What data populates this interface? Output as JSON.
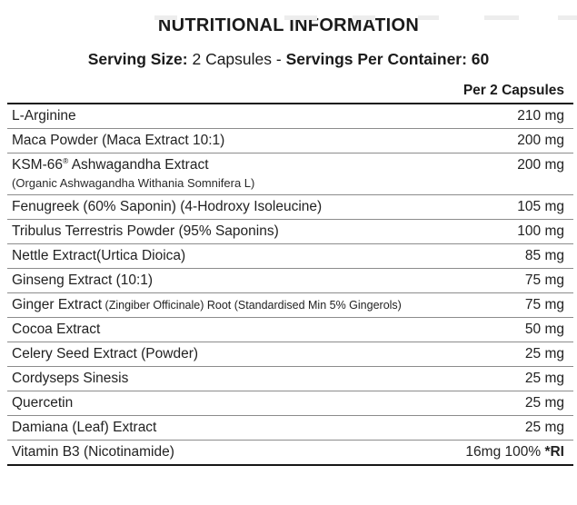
{
  "title": "NUTRITIONAL INFORMATION",
  "serving": {
    "size_label": "Serving Size: ",
    "size_value": "2 Capsules - ",
    "container_label": "Servings Per Container: 60"
  },
  "table": {
    "column_header": "Per 2 Capsules",
    "rows": [
      {
        "main": "L-Arginine",
        "amount": "210 mg"
      },
      {
        "main": "Maca Powder (Maca Extract 10:1)",
        "amount": "200 mg"
      },
      {
        "main": "KSM-66",
        "sup": "®",
        "rest": " Ashwagandha Extract",
        "subline": "(Organic Ashwagandha Withania Somnifera L)",
        "amount": "200 mg"
      },
      {
        "main": "Fenugreek (60% Saponin) (4-Hodroxy Isoleucine)",
        "amount": "105 mg"
      },
      {
        "main": "Tribulus Terrestris Powder (95% Saponins)",
        "amount": "100 mg"
      },
      {
        "main": "Nettle Extract(Urtica Dioica)",
        "amount": "85 mg"
      },
      {
        "main": "Ginseng Extract (10:1)",
        "amount": "75 mg"
      },
      {
        "main": "Ginger Extract",
        "small": " (Zingiber Officinale) Root (Standardised Min 5% Gingerols)",
        "amount": "75 mg"
      },
      {
        "main": "Cocoa Extract",
        "amount": "50 mg"
      },
      {
        "main": "Celery Seed Extract (Powder)",
        "amount": "25 mg"
      },
      {
        "main": "Cordyseps Sinesis",
        "amount": "25 mg"
      },
      {
        "main": "Quercetin",
        "amount": "25 mg"
      },
      {
        "main": "Damiana (Leaf) Extract",
        "amount": "25 mg"
      },
      {
        "main": "Vitamin B3 (Nicotinamide)",
        "amount": "16mg 100% ",
        "amount_bold": "*RI"
      }
    ]
  },
  "colors": {
    "text": "#222222",
    "divider": "#8c8c8c",
    "rule": "#161616",
    "background": "#ffffff"
  }
}
